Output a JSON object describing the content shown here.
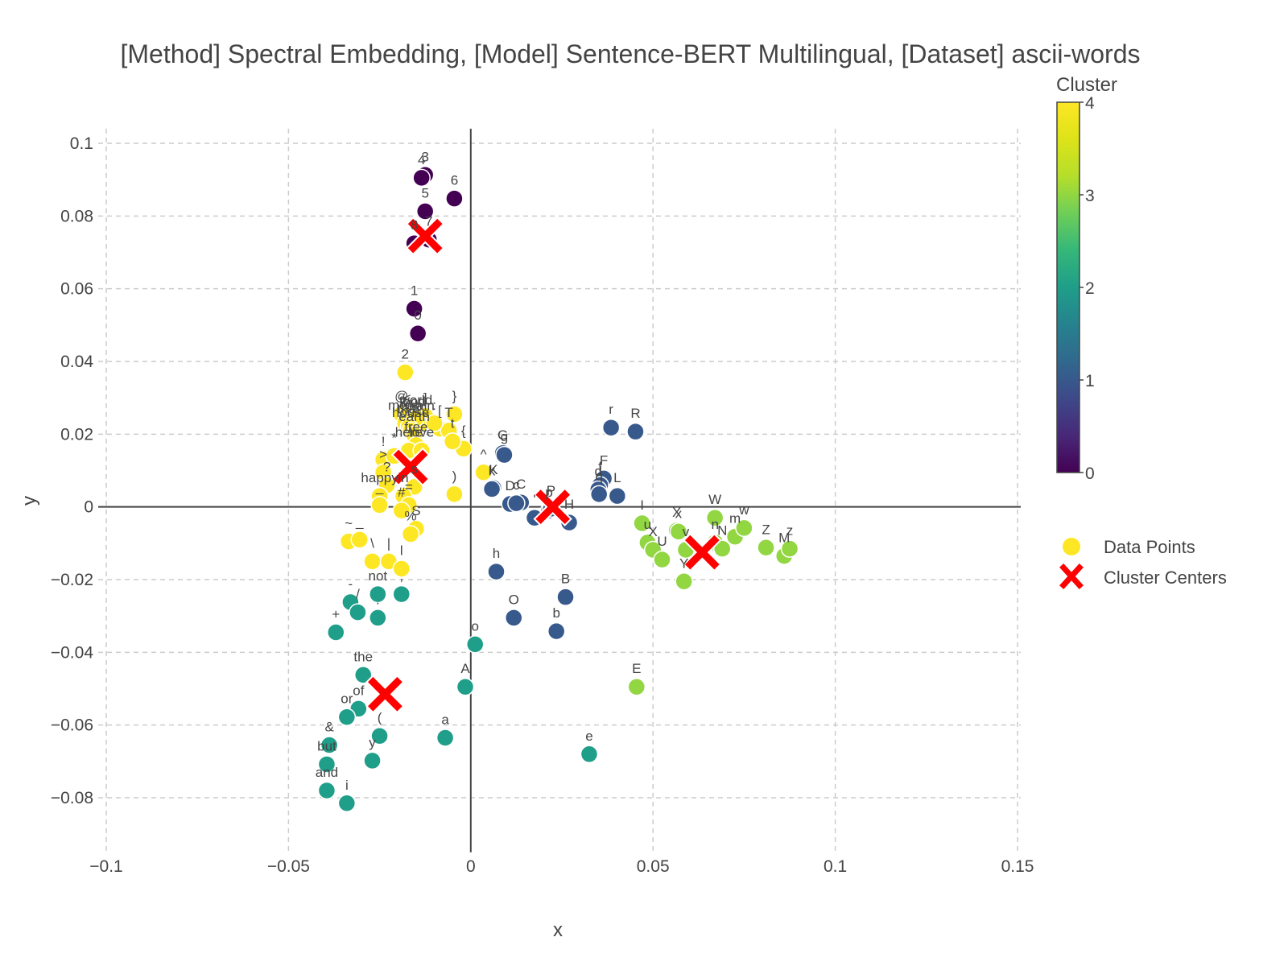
{
  "chart_data": {
    "type": "scatter",
    "title": "[Method] Spectral Embedding, [Model] Sentence-BERT Multilingual, [Dataset] ascii-words",
    "xlabel": "x",
    "ylabel": "y",
    "xlim": [
      -0.1,
      0.15
    ],
    "ylim": [
      -0.095,
      0.104
    ],
    "x_ticks": [
      -0.1,
      -0.05,
      0,
      0.05,
      0.1,
      0.15
    ],
    "x_tick_labels": [
      "−0.1",
      "−0.05",
      "0",
      "0.05",
      "0.1",
      "0.15"
    ],
    "y_ticks": [
      -0.08,
      -0.06,
      -0.04,
      -0.02,
      0,
      0.02,
      0.04,
      0.06,
      0.08,
      0.1
    ],
    "y_tick_labels": [
      "−0.08",
      "−0.06",
      "−0.04",
      "−0.02",
      "0",
      "0.02",
      "0.04",
      "0.06",
      "0.08",
      "0.1"
    ],
    "grid": true,
    "colorbar": {
      "title": "Cluster",
      "range": [
        0,
        4
      ],
      "ticks": [
        "0",
        "1",
        "2",
        "3",
        "4"
      ],
      "colorscale": "viridis"
    },
    "legend": {
      "position": "right",
      "entries": [
        "Data Points",
        "Cluster Centers"
      ]
    },
    "series": [
      {
        "name": "Data Points",
        "points": [
          {
            "label": "3",
            "x": -0.0125,
            "y": 0.0913,
            "cluster": 0
          },
          {
            "label": "4",
            "x": -0.0135,
            "y": 0.0905,
            "cluster": 0
          },
          {
            "label": "6",
            "x": -0.0045,
            "y": 0.0848,
            "cluster": 0
          },
          {
            "label": "5",
            "x": -0.0125,
            "y": 0.0813,
            "cluster": 0
          },
          {
            "label": "7",
            "x": -0.0115,
            "y": 0.0735,
            "cluster": 0
          },
          {
            "label": "8",
            "x": -0.0155,
            "y": 0.0725,
            "cluster": 0
          },
          {
            "label": "1",
            "x": -0.0155,
            "y": 0.0545,
            "cluster": 0
          },
          {
            "label": "0",
            "x": -0.0145,
            "y": 0.0477,
            "cluster": 0
          },
          {
            "label": "r",
            "x": 0.0385,
            "y": 0.0218,
            "cluster": 1
          },
          {
            "label": "R",
            "x": 0.0452,
            "y": 0.0207,
            "cluster": 1
          },
          {
            "label": "G",
            "x": 0.0088,
            "y": 0.0148,
            "cluster": 1
          },
          {
            "label": "g",
            "x": 0.0092,
            "y": 0.0143,
            "cluster": 1
          },
          {
            "label": "K",
            "x": 0.0062,
            "y": 0.0052,
            "cluster": 1
          },
          {
            "label": "k",
            "x": 0.0058,
            "y": 0.0049,
            "cluster": 1
          },
          {
            "label": "F",
            "x": 0.0365,
            "y": 0.0078,
            "cluster": 1
          },
          {
            "label": "f",
            "x": 0.0355,
            "y": 0.006,
            "cluster": 1
          },
          {
            "label": "d",
            "x": 0.035,
            "y": 0.0048,
            "cluster": 1
          },
          {
            "label": "q",
            "x": 0.0352,
            "y": 0.0035,
            "cluster": 1
          },
          {
            "label": "L",
            "x": 0.0402,
            "y": 0.003,
            "cluster": 1
          },
          {
            "label": "D",
            "x": 0.0108,
            "y": 0.0008,
            "cluster": 1
          },
          {
            "label": "C",
            "x": 0.0138,
            "y": 0.0012,
            "cluster": 1
          },
          {
            "label": "c",
            "x": 0.0125,
            "y": 0.001,
            "cluster": 1
          },
          {
            "label": "'",
            "x": 0.0175,
            "y": -0.003,
            "cluster": 1
          },
          {
            "label": "p",
            "x": 0.0215,
            "y": -0.001,
            "cluster": 1
          },
          {
            "label": "P",
            "x": 0.022,
            "y": -0.0005,
            "cluster": 1
          },
          {
            "label": "H",
            "x": 0.027,
            "y": -0.0043,
            "cluster": 1
          },
          {
            "label": "h",
            "x": 0.007,
            "y": -0.0178,
            "cluster": 1
          },
          {
            "label": "B",
            "x": 0.026,
            "y": -0.0248,
            "cluster": 1
          },
          {
            "label": "O",
            "x": 0.0118,
            "y": -0.0305,
            "cluster": 1
          },
          {
            "label": "b",
            "x": 0.0235,
            "y": -0.0342,
            "cluster": 1
          },
          {
            "label": "-",
            "x": -0.033,
            "y": -0.0262,
            "cluster": 2
          },
          {
            "label": "/",
            "x": -0.031,
            "y": -0.029,
            "cluster": 2
          },
          {
            "label": "not",
            "x": -0.0255,
            "y": -0.024,
            "cluster": 2
          },
          {
            "label": ",",
            "x": -0.019,
            "y": -0.024,
            "cluster": 2
          },
          {
            "label": ".",
            "x": -0.0255,
            "y": -0.0305,
            "cluster": 2
          },
          {
            "label": "+",
            "x": -0.037,
            "y": -0.0345,
            "cluster": 2
          },
          {
            "label": "o",
            "x": 0.0012,
            "y": -0.0378,
            "cluster": 2
          },
          {
            "label": "the",
            "x": -0.0295,
            "y": -0.0462,
            "cluster": 2
          },
          {
            "label": "A",
            "x": -0.0015,
            "y": -0.0495,
            "cluster": 2
          },
          {
            "label": "of",
            "x": -0.0308,
            "y": -0.0555,
            "cluster": 2
          },
          {
            "label": "or",
            "x": -0.034,
            "y": -0.0578,
            "cluster": 2
          },
          {
            "label": "(",
            "x": -0.025,
            "y": -0.063,
            "cluster": 2
          },
          {
            "label": "a",
            "x": -0.007,
            "y": -0.0635,
            "cluster": 2
          },
          {
            "label": "&",
            "x": -0.0388,
            "y": -0.0655,
            "cluster": 2
          },
          {
            "label": "e",
            "x": 0.0325,
            "y": -0.068,
            "cluster": 2
          },
          {
            "label": "y",
            "x": -0.027,
            "y": -0.0698,
            "cluster": 2
          },
          {
            "label": "but",
            "x": -0.0395,
            "y": -0.0708,
            "cluster": 2
          },
          {
            "label": "and",
            "x": -0.0395,
            "y": -0.078,
            "cluster": 2
          },
          {
            "label": "i",
            "x": -0.034,
            "y": -0.0815,
            "cluster": 2
          },
          {
            "label": "W",
            "x": 0.067,
            "y": -0.003,
            "cluster": 3
          },
          {
            "label": "I",
            "x": 0.047,
            "y": -0.0045,
            "cluster": 3
          },
          {
            "label": "X",
            "x": 0.0565,
            "y": -0.0065,
            "cluster": 3
          },
          {
            "label": "x",
            "x": 0.057,
            "y": -0.0068,
            "cluster": 3
          },
          {
            "label": "m",
            "x": 0.0725,
            "y": -0.0082,
            "cluster": 3
          },
          {
            "label": "w",
            "x": 0.075,
            "y": -0.0058,
            "cluster": 3
          },
          {
            "label": "n",
            "x": 0.067,
            "y": -0.0098,
            "cluster": 3
          },
          {
            "label": "N",
            "x": 0.069,
            "y": -0.0115,
            "cluster": 3
          },
          {
            "label": "u",
            "x": 0.0485,
            "y": -0.0098,
            "cluster": 3
          },
          {
            "label": "X",
            "x": 0.05,
            "y": -0.0118,
            "cluster": 3
          },
          {
            "label": "U",
            "x": 0.0525,
            "y": -0.0145,
            "cluster": 3
          },
          {
            "label": "v",
            "x": 0.059,
            "y": -0.0118,
            "cluster": 3
          },
          {
            "label": "Y",
            "x": 0.0585,
            "y": -0.0205,
            "cluster": 3
          },
          {
            "label": "Z",
            "x": 0.081,
            "y": -0.0112,
            "cluster": 3
          },
          {
            "label": "M",
            "x": 0.086,
            "y": -0.0135,
            "cluster": 3
          },
          {
            "label": "z",
            "x": 0.0875,
            "y": -0.0115,
            "cluster": 3
          },
          {
            "label": "E",
            "x": 0.0455,
            "y": -0.0495,
            "cluster": 3
          },
          {
            "label": "2",
            "x": -0.018,
            "y": 0.037,
            "cluster": 4
          },
          {
            "label": "@",
            "x": -0.019,
            "y": 0.0255,
            "cluster": 4
          },
          {
            "label": "<",
            "x": -0.0175,
            "y": 0.025,
            "cluster": 4
          },
          {
            "label": "]",
            "x": -0.0125,
            "y": 0.025,
            "cluster": 4
          },
          {
            "label": "}",
            "x": -0.0045,
            "y": 0.0255,
            "cluster": 4
          },
          {
            "label": "mean",
            "x": -0.018,
            "y": 0.023,
            "cluster": 4
          },
          {
            "label": "main",
            "x": -0.014,
            "y": 0.0228,
            "cluster": 4
          },
          {
            "label": "food",
            "x": -0.016,
            "y": 0.024,
            "cluster": 4
          },
          {
            "label": "world",
            "x": -0.015,
            "y": 0.0244,
            "cluster": 4
          },
          {
            "label": "that",
            "x": -0.017,
            "y": 0.022,
            "cluster": 4
          },
          {
            "label": "house",
            "x": -0.0165,
            "y": 0.021,
            "cluster": 4
          },
          {
            "label": "earth",
            "x": -0.0155,
            "y": 0.0198,
            "cluster": 4
          },
          {
            "label": "[",
            "x": -0.0085,
            "y": 0.0215,
            "cluster": 4
          },
          {
            "label": "T",
            "x": -0.006,
            "y": 0.021,
            "cluster": 4
          },
          {
            "label": "{",
            "x": -0.002,
            "y": 0.016,
            "cluster": 4
          },
          {
            "label": "t",
            "x": -0.005,
            "y": 0.018,
            "cluster": 4
          },
          {
            "label": ":",
            "x": -0.01,
            "y": 0.023,
            "cluster": 4
          },
          {
            "label": "!",
            "x": -0.024,
            "y": 0.013,
            "cluster": 4
          },
          {
            "label": "*",
            "x": -0.021,
            "y": 0.014,
            "cluster": 4
          },
          {
            "label": "free",
            "x": -0.015,
            "y": 0.017,
            "cluster": 4
          },
          {
            "label": "here",
            "x": -0.017,
            "y": 0.0155,
            "cluster": 4
          },
          {
            "label": "love",
            "x": -0.0135,
            "y": 0.0155,
            "cluster": 4
          },
          {
            "label": ">",
            "x": -0.024,
            "y": 0.0095,
            "cluster": 4
          },
          {
            "label": "^",
            "x": 0.0035,
            "y": 0.0095,
            "cluster": 4
          },
          {
            "label": "?",
            "x": -0.023,
            "y": 0.006,
            "cluster": 4
          },
          {
            "label": ")",
            "x": -0.0045,
            "y": 0.0035,
            "cluster": 4
          },
          {
            "label": "happy",
            "x": -0.025,
            "y": 0.003,
            "cluster": 4
          },
          {
            "label": "s",
            "x": -0.0155,
            "y": 0.0055,
            "cluster": 4
          },
          {
            "label": "in",
            "x": -0.0185,
            "y": 0.003,
            "cluster": 4
          },
          {
            "label": "=",
            "x": -0.017,
            "y": 0.0005,
            "cluster": 4
          },
          {
            "label": "_",
            "x": -0.025,
            "y": 0.0005,
            "cluster": 4
          },
          {
            "label": "S",
            "x": -0.015,
            "y": -0.006,
            "cluster": 4
          },
          {
            "label": "~",
            "x": -0.0335,
            "y": -0.0095,
            "cluster": 4
          },
          {
            "label": "_",
            "x": -0.0305,
            "y": -0.009,
            "cluster": 4
          },
          {
            "label": "\\",
            "x": -0.027,
            "y": -0.015,
            "cluster": 4
          },
          {
            "label": "|",
            "x": -0.0225,
            "y": -0.015,
            "cluster": 4
          },
          {
            "label": "l",
            "x": -0.019,
            "y": -0.017,
            "cluster": 4
          },
          {
            "label": "%",
            "x": -0.0165,
            "y": -0.0075,
            "cluster": 4
          },
          {
            "label": "#",
            "x": -0.019,
            "y": -0.001,
            "cluster": 4
          }
        ]
      },
      {
        "name": "Cluster Centers",
        "points": [
          {
            "x": -0.0125,
            "y": 0.0745
          },
          {
            "x": -0.0165,
            "y": 0.011
          },
          {
            "x": 0.0225,
            "y": 0.0
          },
          {
            "x": 0.0635,
            "y": -0.0125
          },
          {
            "x": -0.0235,
            "y": -0.0515
          }
        ]
      }
    ]
  }
}
